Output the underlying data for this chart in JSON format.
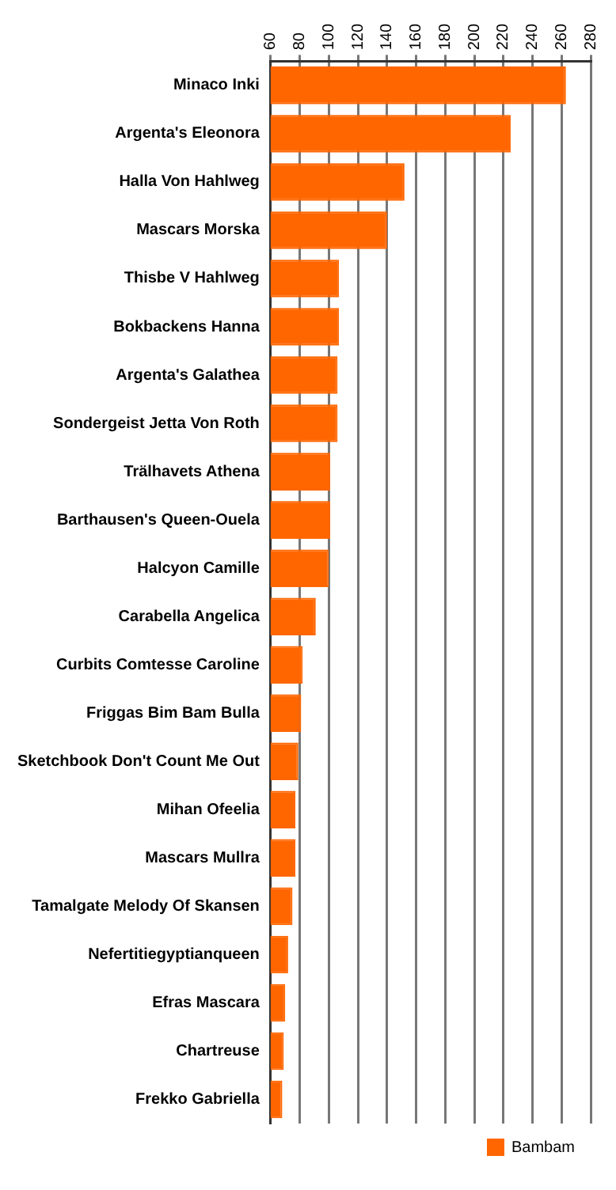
{
  "chart_data": {
    "type": "bar",
    "orientation": "horizontal",
    "categories": [
      "Minaco Inki",
      "Argenta's Eleonora",
      "Halla Von Hahlweg",
      "Mascars Morska",
      "Thisbe V Hahlweg",
      "Bokbackens Hanna",
      "Argenta's Galathea",
      "Sondergeist Jetta Von Roth",
      "Trälhavets Athena",
      "Barthausen's Queen-Ouela",
      "Halcyon Camille",
      "Carabella Angelica",
      "Curbits Comtesse Caroline",
      "Friggas Bim Bam Bulla",
      "Sketchbook Don't Count Me Out",
      "Mihan Ofeelia",
      "Mascars Mullra",
      "Tamalgate Melody Of Skansen",
      "Nefertitiegyptianqueen",
      "Efras Mascara",
      "Chartreuse",
      "Frekko Gabriella"
    ],
    "series": [
      {
        "name": "Bambam",
        "color": "#ff6600",
        "values": [
          263,
          225,
          152,
          140,
          107,
          107,
          106,
          106,
          101,
          101,
          100,
          91,
          82,
          81,
          79,
          77,
          77,
          75,
          72,
          70,
          69,
          68
        ]
      }
    ],
    "xlim": [
      60,
      280
    ],
    "xticks": [
      60,
      80,
      100,
      120,
      140,
      160,
      180,
      200,
      220,
      240,
      260,
      280
    ],
    "grid": "x",
    "legend": "bottom right"
  }
}
